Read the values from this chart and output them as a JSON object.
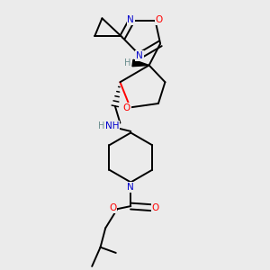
{
  "bg_color": "#ebebeb",
  "atom_colors": {
    "C": "#000000",
    "N": "#0000cd",
    "O": "#ff0000",
    "H": "#6b8e8e"
  },
  "figsize": [
    3.0,
    3.0
  ],
  "dpi": 100,
  "lw": 1.4
}
